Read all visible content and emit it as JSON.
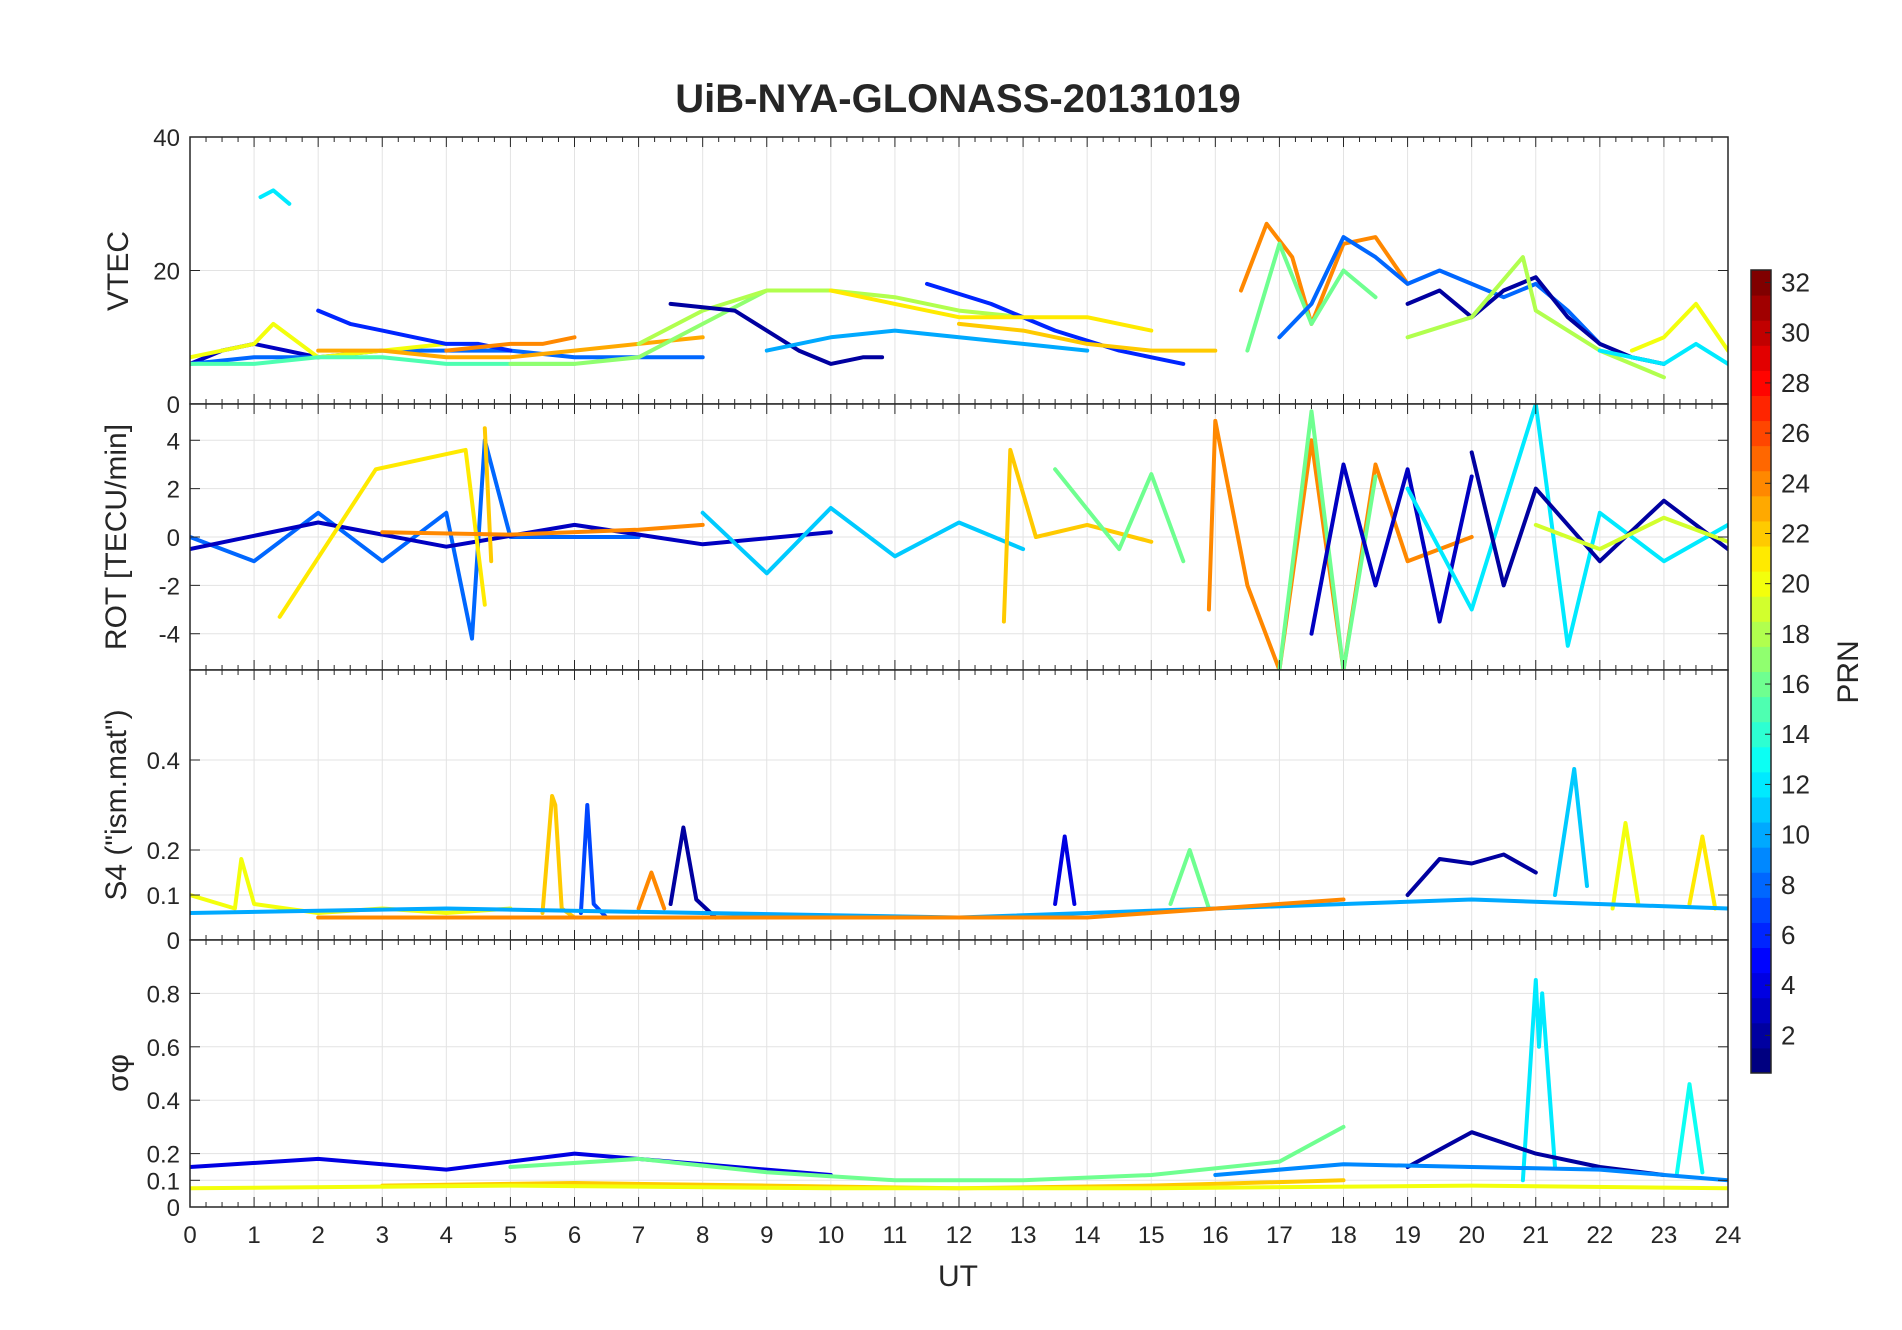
{
  "figure": {
    "title": "UiB-NYA-GLONASS-20131019"
  },
  "chart_data": [
    {
      "type": "line",
      "panel": "vtec",
      "ylabel": "VTEC",
      "xlim": [
        0,
        24
      ],
      "ylim": [
        0,
        40
      ],
      "yticks": [
        0,
        20,
        40
      ],
      "grid": true,
      "series": [
        {
          "prn": 3,
          "x": [
            0,
            0.5,
            1,
            1.5,
            2
          ],
          "y": [
            6,
            8,
            9,
            8,
            7
          ]
        },
        {
          "prn": 8,
          "x": [
            0,
            1,
            2,
            3,
            4,
            5,
            6,
            7,
            8
          ],
          "y": [
            6,
            7,
            7,
            8,
            8,
            8,
            7,
            7,
            7
          ]
        },
        {
          "prn": 20,
          "x": [
            0,
            1,
            1.3,
            2,
            3,
            4
          ],
          "y": [
            7,
            9,
            12,
            7,
            8,
            9
          ]
        },
        {
          "prn": 12,
          "x": [
            1.1,
            1.3,
            1.55
          ],
          "y": [
            31,
            32,
            30
          ]
        },
        {
          "prn": 15,
          "x": [
            0,
            1,
            2,
            3,
            4,
            5,
            6
          ],
          "y": [
            6,
            6,
            7,
            7,
            6,
            6,
            6
          ]
        },
        {
          "prn": 6,
          "x": [
            2,
            2.5,
            3,
            3.5,
            4,
            4.5,
            5
          ],
          "y": [
            14,
            12,
            11,
            10,
            9,
            9,
            8
          ]
        },
        {
          "prn": 23,
          "x": [
            2,
            3,
            4,
            5,
            6,
            7,
            8
          ],
          "y": [
            8,
            8,
            7,
            7,
            8,
            9,
            10
          ]
        },
        {
          "prn": 24,
          "x": [
            4,
            5,
            5.5,
            6
          ],
          "y": [
            8,
            9,
            9,
            10
          ]
        },
        {
          "prn": 17,
          "x": [
            5,
            6,
            7,
            8,
            9,
            10
          ],
          "y": [
            6,
            6,
            7,
            12,
            17,
            17
          ]
        },
        {
          "prn": 18,
          "x": [
            7,
            8,
            9,
            10,
            11,
            12,
            13
          ],
          "y": [
            9,
            14,
            17,
            17,
            16,
            14,
            13
          ]
        },
        {
          "prn": 2,
          "x": [
            7.5,
            8.5,
            9.5,
            10,
            10.5,
            10.8
          ],
          "y": [
            15,
            14,
            8,
            6,
            7,
            7
          ]
        },
        {
          "prn": 10,
          "x": [
            9,
            10,
            11,
            12,
            13,
            14
          ],
          "y": [
            8,
            10,
            11,
            10,
            9,
            8
          ]
        },
        {
          "prn": 6,
          "x": [
            11.5,
            12.5,
            13.5,
            14.5,
            15.5
          ],
          "y": [
            18,
            15,
            11,
            8,
            6
          ]
        },
        {
          "prn": 21,
          "x": [
            10,
            11,
            12,
            13,
            14,
            15
          ],
          "y": [
            17,
            15,
            13,
            13,
            13,
            11
          ]
        },
        {
          "prn": 22,
          "x": [
            12,
            13,
            14,
            15,
            16
          ],
          "y": [
            12,
            11,
            9,
            8,
            8
          ]
        },
        {
          "prn": 24,
          "x": [
            16.4,
            16.8,
            17.2,
            17.5,
            18,
            18.5,
            19
          ],
          "y": [
            17,
            27,
            22,
            12,
            24,
            25,
            18
          ]
        },
        {
          "prn": 16,
          "x": [
            16.5,
            17,
            17.5,
            18,
            18.5
          ],
          "y": [
            8,
            24,
            12,
            20,
            16
          ]
        },
        {
          "prn": 8,
          "x": [
            17,
            17.5,
            18,
            18.5,
            19,
            19.5,
            20,
            20.5,
            21,
            21.5,
            22
          ],
          "y": [
            10,
            15,
            25,
            22,
            18,
            20,
            18,
            16,
            18,
            14,
            9
          ]
        },
        {
          "prn": 2,
          "x": [
            19,
            19.5,
            20,
            20.5,
            21,
            21.5,
            22,
            22.5,
            23
          ],
          "y": [
            15,
            17,
            13,
            17,
            19,
            13,
            9,
            7,
            6
          ]
        },
        {
          "prn": 18,
          "x": [
            19,
            20,
            20.8,
            21,
            22,
            23
          ],
          "y": [
            10,
            13,
            22,
            14,
            8,
            4
          ]
        },
        {
          "prn": 20,
          "x": [
            22.5,
            23,
            23.5,
            24
          ],
          "y": [
            8,
            10,
            15,
            8
          ]
        },
        {
          "prn": 12,
          "x": [
            22,
            22.5,
            23,
            23.5,
            24
          ],
          "y": [
            8,
            7,
            6,
            9,
            6
          ]
        }
      ]
    },
    {
      "type": "line",
      "panel": "rot",
      "ylabel": "ROT [TECU/min]",
      "xlim": [
        0,
        24
      ],
      "ylim": [
        -5.5,
        5.5
      ],
      "yticks": [
        -4,
        -2,
        0,
        2,
        4
      ],
      "grid": true,
      "series": [
        {
          "prn": 8,
          "x": [
            0,
            1,
            2,
            3,
            4,
            4.4,
            4.6,
            5,
            6,
            7
          ],
          "y": [
            0,
            -1,
            1,
            -1,
            1,
            -4.2,
            4,
            0,
            0,
            0
          ]
        },
        {
          "prn": 3,
          "x": [
            0,
            2,
            4,
            6,
            8,
            10
          ],
          "y": [
            -0.5,
            0.6,
            -0.4,
            0.5,
            -0.3,
            0.2
          ]
        },
        {
          "prn": 21,
          "x": [
            1.4,
            2.9,
            4.3,
            4.6
          ],
          "y": [
            -3.3,
            2.8,
            3.6,
            -2.8
          ]
        },
        {
          "prn": 22,
          "x": [
            4.6,
            4.7
          ],
          "y": [
            4.5,
            -1
          ]
        },
        {
          "prn": 24,
          "x": [
            3,
            5,
            7,
            8
          ],
          "y": [
            0.2,
            0.1,
            0.3,
            0.5
          ]
        },
        {
          "prn": 11,
          "x": [
            8,
            9,
            10,
            11,
            12,
            13
          ],
          "y": [
            1,
            -1.5,
            1.2,
            -0.8,
            0.6,
            -0.5
          ]
        },
        {
          "prn": 22,
          "x": [
            12.7,
            12.8,
            13.2,
            14,
            15
          ],
          "y": [
            -3.5,
            3.6,
            0,
            0.5,
            -0.2
          ]
        },
        {
          "prn": 16,
          "x": [
            13.5,
            14.5,
            15,
            15.5
          ],
          "y": [
            2.8,
            -0.5,
            2.6,
            -1
          ]
        },
        {
          "prn": 24,
          "x": [
            15.9,
            16,
            16.5,
            17,
            17.5,
            18,
            18.5,
            19,
            20
          ],
          "y": [
            -3,
            4.8,
            -2,
            -5.5,
            4,
            -5.5,
            3,
            -1,
            0
          ]
        },
        {
          "prn": 16,
          "x": [
            17,
            17.5,
            18,
            18.5
          ],
          "y": [
            -5.5,
            5.2,
            -5.5,
            2.5
          ]
        },
        {
          "prn": 3,
          "x": [
            17.5,
            18,
            18.5,
            19,
            19.5,
            20
          ],
          "y": [
            -4,
            3,
            -2,
            2.8,
            -3.5,
            2.5
          ]
        },
        {
          "prn": 12,
          "x": [
            19,
            20,
            21,
            21.5,
            22,
            23,
            24
          ],
          "y": [
            2,
            -3,
            5.5,
            -4.5,
            1,
            -1,
            0.5
          ]
        },
        {
          "prn": 2,
          "x": [
            20,
            20.5,
            21,
            22,
            23,
            24
          ],
          "y": [
            3.5,
            -2,
            2,
            -1,
            1.5,
            -0.5
          ]
        },
        {
          "prn": 19,
          "x": [
            21,
            22,
            23,
            24
          ],
          "y": [
            0.5,
            -0.5,
            0.8,
            -0.2
          ]
        }
      ]
    },
    {
      "type": "line",
      "panel": "s4",
      "ylabel": "S4 (\"ism.mat\")",
      "xlim": [
        0,
        24
      ],
      "ylim": [
        0,
        0.6
      ],
      "yticks": [
        0,
        0.1,
        0.2,
        0.4
      ],
      "grid": true,
      "series": [
        {
          "prn": 20,
          "x": [
            0,
            0.7,
            0.8,
            1,
            2,
            3,
            4,
            5
          ],
          "y": [
            0.1,
            0.07,
            0.18,
            0.08,
            0.06,
            0.07,
            0.06,
            0.07
          ]
        },
        {
          "prn": 22,
          "x": [
            5.5,
            5.65,
            5.7,
            5.8,
            6
          ],
          "y": [
            0.06,
            0.32,
            0.3,
            0.07,
            0.05
          ]
        },
        {
          "prn": 7,
          "x": [
            6.1,
            6.2,
            6.3,
            6.5
          ],
          "y": [
            0.06,
            0.3,
            0.08,
            0.05
          ]
        },
        {
          "prn": 24,
          "x": [
            7,
            7.2,
            7.4
          ],
          "y": [
            0.07,
            0.15,
            0.07
          ]
        },
        {
          "prn": 2,
          "x": [
            7.5,
            7.7,
            7.9,
            8.2
          ],
          "y": [
            0.08,
            0.25,
            0.09,
            0.05
          ]
        },
        {
          "prn": 4,
          "x": [
            13.5,
            13.65,
            13.8
          ],
          "y": [
            0.08,
            0.23,
            0.08
          ]
        },
        {
          "prn": 16,
          "x": [
            15.3,
            15.6,
            15.9
          ],
          "y": [
            0.08,
            0.2,
            0.07
          ]
        },
        {
          "prn": 2,
          "x": [
            19,
            19.5,
            20,
            20.5,
            21
          ],
          "y": [
            0.1,
            0.18,
            0.17,
            0.19,
            0.15
          ]
        },
        {
          "prn": 11,
          "x": [
            21.3,
            21.6,
            21.8
          ],
          "y": [
            0.1,
            0.38,
            0.12
          ]
        },
        {
          "prn": 20,
          "x": [
            22.2,
            22.4,
            22.6
          ],
          "y": [
            0.07,
            0.26,
            0.08
          ]
        },
        {
          "prn": 21,
          "x": [
            23.4,
            23.6,
            23.8
          ],
          "y": [
            0.08,
            0.23,
            0.07
          ]
        },
        {
          "prn": 10,
          "x": [
            0,
            4,
            8,
            12,
            16,
            20,
            24
          ],
          "y": [
            0.06,
            0.07,
            0.06,
            0.05,
            0.07,
            0.09,
            0.07
          ]
        },
        {
          "prn": 24,
          "x": [
            2,
            6,
            10,
            14,
            18
          ],
          "y": [
            0.05,
            0.05,
            0.05,
            0.05,
            0.09
          ]
        }
      ]
    },
    {
      "type": "line",
      "panel": "sigma_phi",
      "ylabel": "σφ",
      "xlabel": "UT",
      "xlim": [
        0,
        24
      ],
      "ylim": [
        0,
        1
      ],
      "yticks": [
        0,
        0.1,
        0.2,
        0.4,
        0.6,
        0.8
      ],
      "xticks": [
        0,
        1,
        2,
        3,
        4,
        5,
        6,
        7,
        8,
        9,
        10,
        11,
        12,
        13,
        14,
        15,
        16,
        17,
        18,
        19,
        20,
        21,
        22,
        23,
        24
      ],
      "grid": true,
      "series": [
        {
          "prn": 4,
          "x": [
            0,
            2,
            4,
            6,
            8,
            10
          ],
          "y": [
            0.15,
            0.18,
            0.14,
            0.2,
            0.16,
            0.12
          ]
        },
        {
          "prn": 16,
          "x": [
            5,
            7,
            9,
            11,
            13,
            15,
            17,
            18
          ],
          "y": [
            0.15,
            0.18,
            0.13,
            0.1,
            0.1,
            0.12,
            0.17,
            0.3
          ]
        },
        {
          "prn": 22,
          "x": [
            3,
            6,
            9,
            12,
            15,
            18
          ],
          "y": [
            0.08,
            0.09,
            0.08,
            0.07,
            0.08,
            0.1
          ]
        },
        {
          "prn": 20,
          "x": [
            0,
            5,
            10,
            15,
            20,
            24
          ],
          "y": [
            0.07,
            0.08,
            0.07,
            0.07,
            0.08,
            0.07
          ]
        },
        {
          "prn": 12,
          "x": [
            20.8,
            21,
            21.05,
            21.1,
            21.3
          ],
          "y": [
            0.1,
            0.85,
            0.6,
            0.8,
            0.15
          ]
        },
        {
          "prn": 13,
          "x": [
            23.2,
            23.4,
            23.6
          ],
          "y": [
            0.12,
            0.46,
            0.13
          ]
        },
        {
          "prn": 2,
          "x": [
            19,
            20,
            21,
            22,
            23
          ],
          "y": [
            0.15,
            0.28,
            0.2,
            0.15,
            0.12
          ]
        },
        {
          "prn": 9,
          "x": [
            16,
            18,
            20,
            22,
            24
          ],
          "y": [
            0.12,
            0.16,
            0.15,
            0.14,
            0.1
          ]
        }
      ]
    }
  ],
  "colorbar": {
    "label": "PRN",
    "range": [
      1,
      32
    ],
    "ticks": [
      2,
      4,
      6,
      8,
      10,
      12,
      14,
      16,
      18,
      20,
      22,
      24,
      26,
      28,
      30,
      32
    ]
  }
}
